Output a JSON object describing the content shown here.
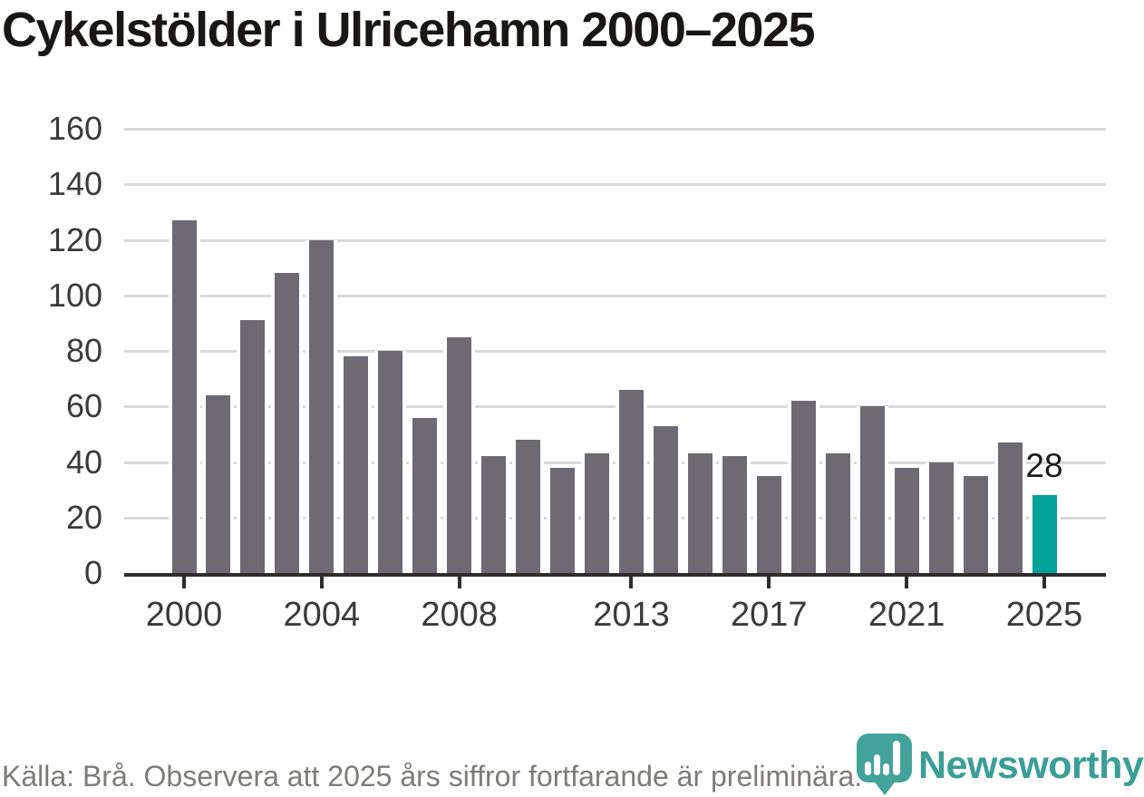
{
  "title": "Cykelstölder i Ulricehamn 2000–2025",
  "footer": {
    "source_note": "Källa: Brå. Observera att 2025 års siffror fortfarande är preliminära."
  },
  "branding": {
    "wordmark": "Newsworthy",
    "wordmark_color": "#3b9e97",
    "pin_color": "#43a39b"
  },
  "chart_data": {
    "type": "bar",
    "title": "Cykelstölder i Ulricehamn 2000–2025",
    "categories": [
      2000,
      2001,
      2002,
      2003,
      2004,
      2005,
      2006,
      2007,
      2008,
      2009,
      2010,
      2011,
      2012,
      2013,
      2014,
      2015,
      2016,
      2017,
      2018,
      2019,
      2020,
      2021,
      2022,
      2023,
      2024,
      2025
    ],
    "values": [
      127,
      64,
      91,
      108,
      120,
      78,
      80,
      56,
      85,
      42,
      48,
      38,
      43,
      66,
      53,
      43,
      42,
      35,
      62,
      43,
      60,
      38,
      40,
      35,
      47,
      28
    ],
    "highlight_category": 2025,
    "highlight_value_label": "28",
    "xlabel": "",
    "ylabel": "",
    "ylim": [
      0,
      160
    ],
    "yticks": [
      0,
      20,
      40,
      60,
      80,
      100,
      120,
      140,
      160
    ],
    "xticks": [
      2000,
      2004,
      2008,
      2013,
      2017,
      2021,
      2025
    ],
    "grid": "horizontal",
    "legend": "none",
    "bar_color": "#6e6a71",
    "highlight_color": "#00a29a",
    "gridline_color": "#d9d9d9",
    "axis_color": "#2e2d2c"
  }
}
